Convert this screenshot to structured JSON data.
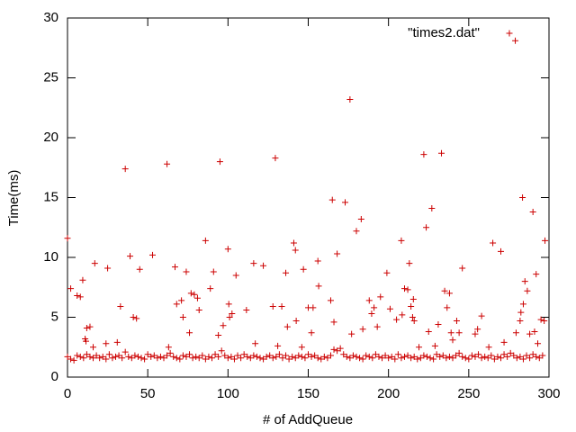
{
  "chart_data": {
    "type": "scatter",
    "xlabel": "# of AddQueue",
    "ylabel": "Time(ms)",
    "xlim": [
      0,
      300
    ],
    "ylim": [
      0,
      30
    ],
    "xticks": [
      0,
      50,
      100,
      150,
      200,
      250,
      300
    ],
    "yticks": [
      0,
      5,
      10,
      15,
      20,
      25,
      30
    ],
    "legend": "top-right",
    "series": [
      {
        "name": "\"times2.dat\"",
        "color": "#cc0000",
        "x": [
          0,
          2,
          4,
          6,
          8,
          10,
          12,
          14,
          16,
          18,
          20,
          22,
          24,
          26,
          28,
          30,
          32,
          34,
          36,
          38,
          40,
          42,
          44,
          46,
          48,
          50,
          52,
          54,
          56,
          58,
          60,
          62,
          64,
          66,
          68,
          70,
          72,
          74,
          76,
          78,
          80,
          82,
          84,
          86,
          88,
          90,
          92,
          94,
          96,
          98,
          100,
          102,
          104,
          106,
          108,
          110,
          112,
          114,
          116,
          118,
          120,
          122,
          124,
          126,
          128,
          130,
          132,
          134,
          136,
          138,
          140,
          142,
          144,
          146,
          148,
          150,
          152,
          154,
          156,
          158,
          160,
          162,
          164,
          166,
          168,
          170,
          172,
          174,
          176,
          178,
          180,
          182,
          184,
          186,
          188,
          190,
          192,
          194,
          196,
          198,
          200,
          202,
          204,
          206,
          208,
          210,
          212,
          214,
          216,
          218,
          220,
          222,
          224,
          226,
          228,
          230,
          232,
          234,
          236,
          238,
          240,
          242,
          244,
          246,
          248,
          250,
          252,
          254,
          256,
          258,
          260,
          262,
          264,
          266,
          268,
          270,
          272,
          274,
          276,
          278,
          280,
          282,
          284,
          286,
          288,
          290,
          292,
          294,
          296,
          0,
          2,
          6,
          8,
          9.5,
          11,
          11.5,
          12,
          14,
          17,
          16,
          25,
          24,
          31,
          33,
          36,
          39,
          41,
          43,
          45,
          53,
          62,
          63,
          67,
          68,
          71,
          72,
          74,
          76,
          77,
          79,
          81,
          82,
          86,
          89,
          91,
          94,
          95,
          97,
          100,
          100.5,
          101,
          102.5,
          105,
          111.5,
          116,
          117,
          122,
          128,
          129.5,
          131,
          133.5,
          136,
          137,
          141,
          142,
          142.5,
          146,
          147,
          150,
          153,
          152,
          156,
          156.5,
          164,
          165,
          166,
          168,
          173,
          176,
          177,
          180,
          183,
          184,
          188,
          189.5,
          191,
          193,
          195,
          199,
          201,
          205,
          208,
          208.5,
          210,
          212,
          213,
          214,
          215,
          215.5,
          216,
          219,
          222,
          223.5,
          225,
          227,
          229,
          231,
          233,
          235,
          236.5,
          238,
          239,
          240,
          242.5,
          246,
          244,
          254,
          255.5,
          258,
          262.5,
          265,
          270,
          272,
          279,
          279.5,
          282,
          282.5,
          284,
          283.5,
          285,
          286.5,
          288,
          290,
          291,
          292,
          293,
          295,
          297,
          297.5
        ],
        "values": [
          1.7,
          1.5,
          1.4,
          1.8,
          1.7,
          1.6,
          1.9,
          1.7,
          1.6,
          1.8,
          1.6,
          1.7,
          1.5,
          1.9,
          1.6,
          1.7,
          1.8,
          1.6,
          2.1,
          1.7,
          1.6,
          1.8,
          1.7,
          1.6,
          1.5,
          1.9,
          1.7,
          1.8,
          1.6,
          1.7,
          1.6,
          1.8,
          2.0,
          1.7,
          1.6,
          1.5,
          1.8,
          1.7,
          1.9,
          1.6,
          1.7,
          1.6,
          1.8,
          1.5,
          1.7,
          1.6,
          1.9,
          1.7,
          2.2,
          1.8,
          1.6,
          1.7,
          1.5,
          1.8,
          1.6,
          1.9,
          1.7,
          1.6,
          1.8,
          1.7,
          1.6,
          1.5,
          1.7,
          1.8,
          1.6,
          1.7,
          1.9,
          1.6,
          1.8,
          1.5,
          1.7,
          1.6,
          1.8,
          1.7,
          1.6,
          1.9,
          1.7,
          1.8,
          1.6,
          1.5,
          1.7,
          1.6,
          1.8,
          2.3,
          2.2,
          2.4,
          1.9,
          1.7,
          1.6,
          1.8,
          1.7,
          1.6,
          1.5,
          1.8,
          1.7,
          1.6,
          1.9,
          1.7,
          1.6,
          1.8,
          1.6,
          1.7,
          1.5,
          1.9,
          1.6,
          1.7,
          1.8,
          1.6,
          1.7,
          1.5,
          1.6,
          1.8,
          1.7,
          1.6,
          1.5,
          1.9,
          1.7,
          1.8,
          1.6,
          1.7,
          1.6,
          1.8,
          2.0,
          1.7,
          1.6,
          1.5,
          1.8,
          1.7,
          1.9,
          1.6,
          1.7,
          1.6,
          1.8,
          1.5,
          1.7,
          1.6,
          1.9,
          1.7,
          2.0,
          1.8,
          1.6,
          1.7,
          1.5,
          1.8,
          1.6,
          1.9,
          1.7,
          1.6,
          1.8,
          11.6,
          7.4,
          6.8,
          6.7,
          8.1,
          3.2,
          3.0,
          4.1,
          4.2,
          9.5,
          2.5,
          9.1,
          2.8,
          2.9,
          5.9,
          17.4,
          10.1,
          5.0,
          4.9,
          9.0,
          10.2,
          17.8,
          2.5,
          9.2,
          6.1,
          6.4,
          5.0,
          8.8,
          3.7,
          7.0,
          6.9,
          6.6,
          5.6,
          11.4,
          7.4,
          8.8,
          3.5,
          18.0,
          4.3,
          10.7,
          6.1,
          5.0,
          5.3,
          8.5,
          5.6,
          9.5,
          2.8,
          9.3,
          5.9,
          18.3,
          2.6,
          5.9,
          8.7,
          4.2,
          11.2,
          10.6,
          4.7,
          2.5,
          9.0,
          5.8,
          5.8,
          3.7,
          9.7,
          7.6,
          6.4,
          14.8,
          4.6,
          10.3,
          14.6,
          23.2,
          3.6,
          12.2,
          13.2,
          4.0,
          6.4,
          5.3,
          5.8,
          4.2,
          6.7,
          8.7,
          5.7,
          4.8,
          11.4,
          5.2,
          7.4,
          7.3,
          9.5,
          5.9,
          5.0,
          6.5,
          4.7,
          2.5,
          18.6,
          12.5,
          3.8,
          14.1,
          2.6,
          4.4,
          18.7,
          7.2,
          5.8,
          7.0,
          3.7,
          3.1,
          4.7,
          9.1,
          3.7,
          3.6,
          4.0,
          5.1,
          2.5,
          11.2,
          10.5,
          2.9,
          28.1,
          3.7,
          4.7,
          5.4,
          6.1,
          15.0,
          8.0,
          7.2,
          3.6,
          13.8,
          3.8,
          8.6,
          2.8,
          4.8,
          4.7,
          11.4
        ]
      }
    ]
  }
}
